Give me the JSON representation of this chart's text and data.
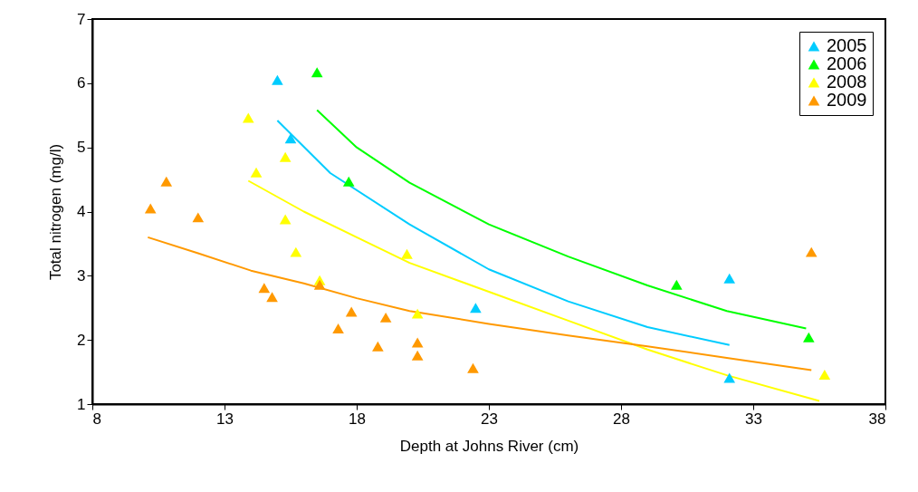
{
  "chart_data": {
    "type": "scatter",
    "xlabel": "Depth at Johns River (cm)",
    "ylabel": "Total nitrogen (mg/l)",
    "xlim": [
      8,
      38
    ],
    "xticks": [
      8,
      13,
      18,
      23,
      28,
      33,
      38
    ],
    "ylim": [
      1,
      7
    ],
    "yticks": [
      1,
      2,
      3,
      4,
      5,
      6,
      7
    ],
    "grid": false,
    "legend": "top right",
    "series": [
      {
        "name": "2005",
        "marker": "triangle",
        "color": "#00ccff",
        "x": [
          15.0,
          15.5,
          22.5,
          32.1,
          32.1
        ],
        "values": [
          6.05,
          5.14,
          2.5,
          2.96,
          1.41
        ]
      },
      {
        "name": "2006",
        "marker": "triangle",
        "color": "#00ff00",
        "x": [
          16.5,
          17.7,
          30.1,
          35.1
        ],
        "values": [
          6.17,
          4.47,
          2.86,
          2.04
        ]
      },
      {
        "name": "2008",
        "marker": "triangle",
        "color": "#ffff00",
        "x": [
          13.9,
          14.2,
          15.3,
          15.3,
          15.7,
          16.6,
          19.9,
          20.3,
          35.7
        ],
        "values": [
          5.46,
          4.61,
          4.85,
          3.88,
          3.37,
          2.93,
          3.34,
          2.41,
          1.46
        ]
      },
      {
        "name": "2009",
        "marker": "triangle",
        "color": "#ff9900",
        "x": [
          10.2,
          10.8,
          12.0,
          14.5,
          14.8,
          16.6,
          17.3,
          17.8,
          18.8,
          19.1,
          20.3,
          20.3,
          22.4,
          35.2
        ],
        "values": [
          4.05,
          4.47,
          3.91,
          2.81,
          2.67,
          2.86,
          2.18,
          2.44,
          1.9,
          2.35,
          1.96,
          1.76,
          1.56,
          3.37
        ]
      },
      {
        "type": "line",
        "color": "#00ccff",
        "x": [
          15.0,
          17,
          20,
          23,
          26,
          29,
          32.1
        ],
        "values": [
          5.42,
          4.6,
          3.8,
          3.1,
          2.6,
          2.2,
          1.92
        ]
      },
      {
        "type": "line",
        "color": "#00ff00",
        "x": [
          16.5,
          18,
          20,
          23,
          26,
          29,
          32,
          35
        ],
        "values": [
          5.58,
          5.0,
          4.45,
          3.8,
          3.3,
          2.85,
          2.45,
          2.18
        ]
      },
      {
        "type": "line",
        "color": "#ffff00",
        "x": [
          13.9,
          16,
          18,
          20,
          23,
          26,
          29,
          32,
          35.5
        ],
        "values": [
          4.48,
          4.0,
          3.6,
          3.2,
          2.75,
          2.3,
          1.85,
          1.45,
          1.05
        ]
      },
      {
        "type": "line",
        "color": "#ff9900",
        "x": [
          10.1,
          12,
          14,
          16,
          18,
          20,
          23,
          26,
          29,
          32,
          35.2
        ],
        "values": [
          3.6,
          3.35,
          3.08,
          2.88,
          2.65,
          2.45,
          2.25,
          2.07,
          1.9,
          1.72,
          1.53
        ]
      }
    ]
  }
}
